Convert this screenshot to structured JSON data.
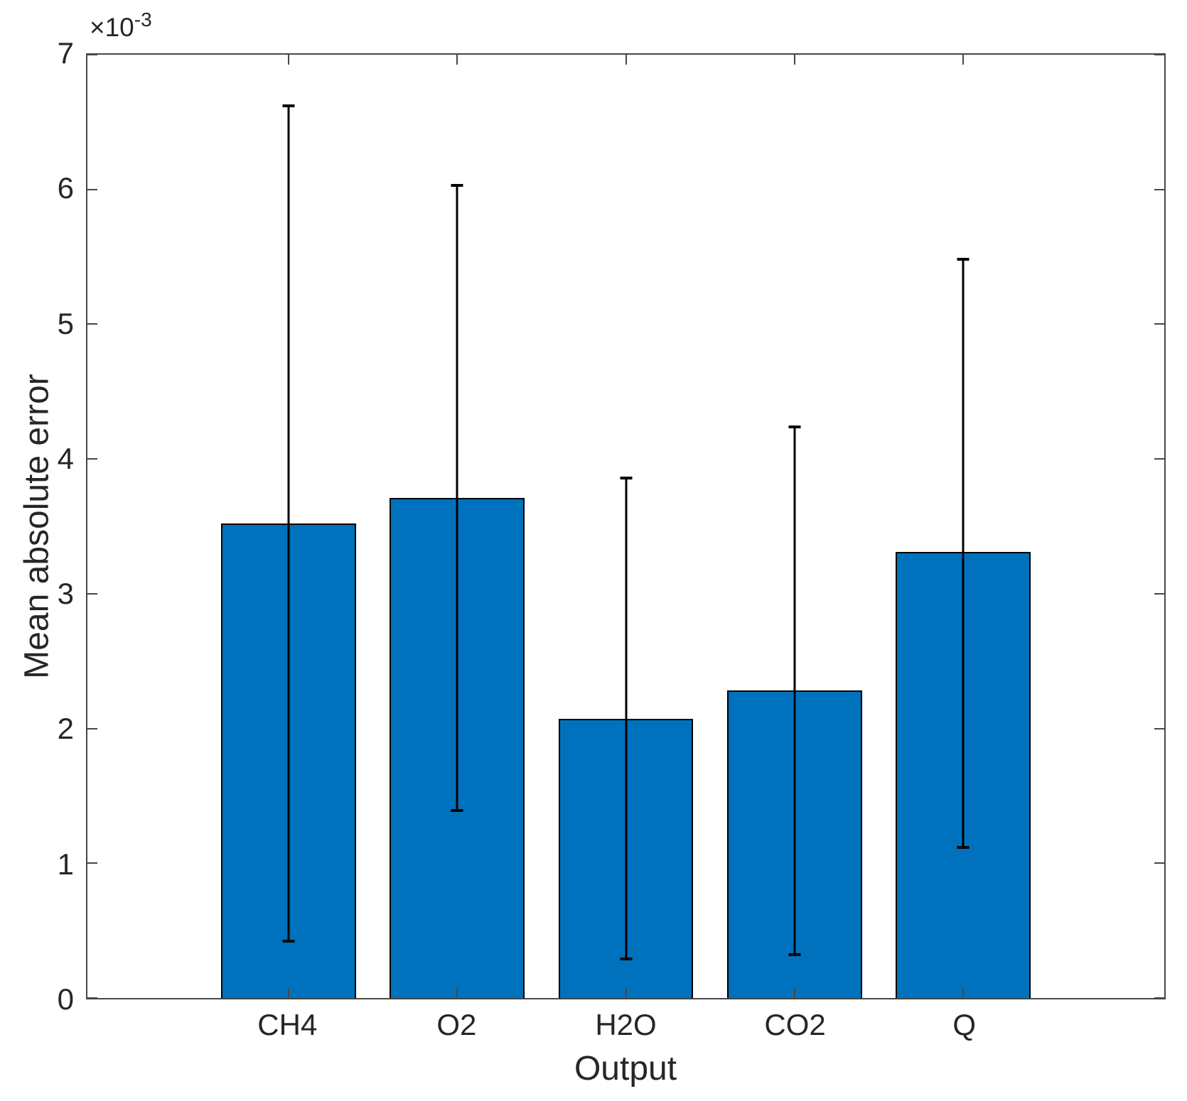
{
  "figure": {
    "background": "#ffffff"
  },
  "chart_data": {
    "type": "bar",
    "title": "",
    "xlabel": "Output",
    "ylabel": "Mean absolute error",
    "offset_text": "×10",
    "offset_exponent": "-3",
    "y_unit_multiplier": "1e-3",
    "categories": [
      "CH4",
      "O2",
      "H2O",
      "CO2",
      "Q"
    ],
    "values": [
      3.52,
      3.71,
      2.07,
      2.28,
      3.31
    ],
    "error_low": [
      0.42,
      1.39,
      0.29,
      0.32,
      1.12
    ],
    "error_high": [
      6.62,
      6.03,
      3.86,
      4.24,
      5.48
    ],
    "ylim": [
      0,
      7
    ],
    "xlim": [
      -0.19,
      6.19
    ],
    "yticks": [
      0,
      1,
      2,
      3,
      4,
      5,
      6,
      7
    ],
    "bar_width_data_units": 0.8,
    "grid": false,
    "legend": null,
    "colors": {
      "bar_fill": "#0072BD",
      "bar_edge": "#000000",
      "error_bar": "#000000",
      "axis": "#474747",
      "text": "#262626"
    }
  }
}
